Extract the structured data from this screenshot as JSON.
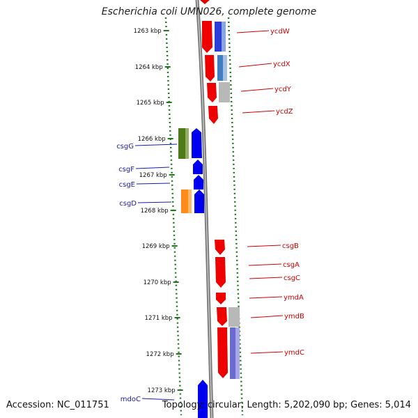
{
  "title": "Escherichia coli UMN026, complete genome",
  "footer": {
    "accession": "Accession: NC_011751",
    "summary": "Topology: circular; Length: 5,202,090 bp; Genes: 5,014"
  },
  "colors": {
    "forward_gene": "#ff0000",
    "reverse_gene": "#0000ff",
    "backbone": "#8a8a8a",
    "tick": "#1a7a1a",
    "label_right": "#cc0000",
    "label_left": "#1a1aaa"
  },
  "ticks": [
    "1263 kbp",
    "1264 kbp",
    "1265 kbp",
    "1266 kbp",
    "1267 kbp",
    "1268 kbp",
    "1269 kbp",
    "1270 kbp",
    "1271 kbp",
    "1272 kbp",
    "1273 kbp"
  ],
  "genes_right": [
    "ycdW",
    "ycdX",
    "ycdY",
    "ycdZ",
    "csgB",
    "csgA",
    "csgC",
    "ymdA",
    "ymdB",
    "ymdC"
  ],
  "genes_left": [
    "csgG",
    "csgF",
    "csgE",
    "csgD",
    "mdoC"
  ]
}
